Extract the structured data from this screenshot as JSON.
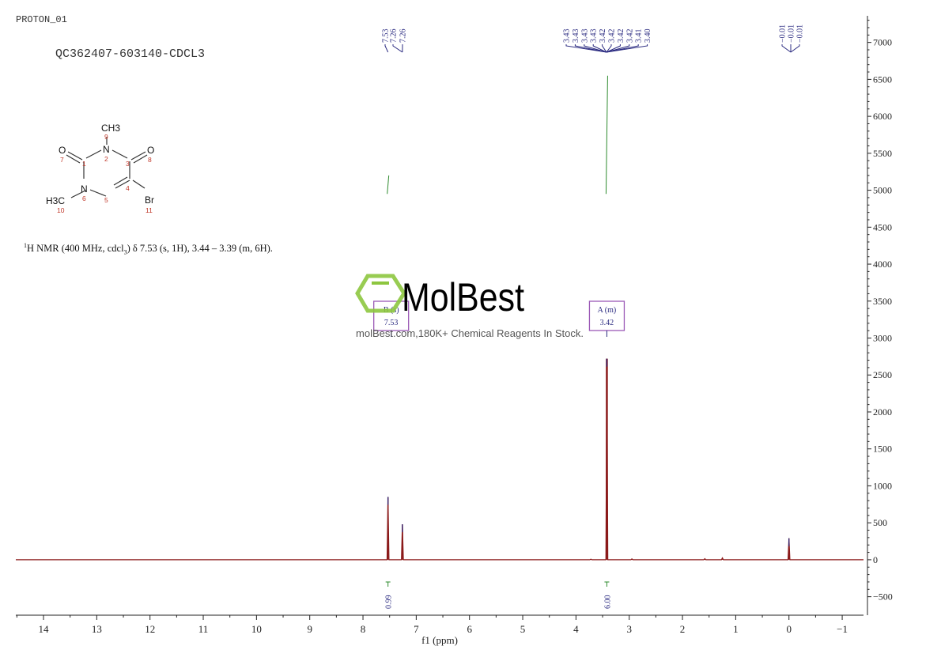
{
  "header": {
    "experiment": "PROTON_01",
    "sample": "QC362407-603140-CDCL3",
    "description": {
      "sup": "1",
      "part1": "H NMR (400 MHz, cdcl",
      "sub": "3",
      "part2": ") δ 7.53 (s, 1H), 3.44 – 3.39 (m, 6H)."
    }
  },
  "molecule": {
    "atoms": {
      "ch3_top": "CH3",
      "n2": "N",
      "n6": "N",
      "o7": "O",
      "o8": "O",
      "br": "Br",
      "h3c": "H3C"
    },
    "numbers": [
      "1",
      "2",
      "3",
      "4",
      "5",
      "6",
      "7",
      "8",
      "9",
      "10",
      "11"
    ],
    "label_color": "#c0392b"
  },
  "watermark": {
    "brand": "MolBest",
    "tagline": "molBest.com,180K+ Chemical Reagents In Stock.",
    "logo_color": "#8dc63f"
  },
  "chart_data": {
    "type": "line",
    "xlabel": "f1 (ppm)",
    "xlim": [
      14.52,
      -1.4
    ],
    "ylim": [
      -750,
      7360
    ],
    "x_ticks": [
      14,
      13,
      12,
      11,
      10,
      9,
      8,
      7,
      6,
      5,
      4,
      3,
      2,
      1,
      0,
      -1
    ],
    "y_ticks": [
      -500,
      0,
      500,
      1000,
      1500,
      2000,
      2500,
      3000,
      3500,
      4000,
      4500,
      5000,
      5500,
      6000,
      6500,
      7000
    ],
    "grid": false,
    "spectrum_color": "#8b1a1a",
    "integral_color": "#2e8b2e",
    "peak_label_color": "#2a2a80",
    "multiplet_box_color": "#9b59b6",
    "peaks": [
      {
        "ppm": 7.53,
        "intensity": 850
      },
      {
        "ppm": 7.26,
        "intensity": 480
      },
      {
        "ppm": 3.42,
        "intensity": 2720
      },
      {
        "ppm": 0.0,
        "intensity": 290
      },
      {
        "ppm": 1.58,
        "intensity": 15
      },
      {
        "ppm": 1.25,
        "intensity": 25
      },
      {
        "ppm": 2.95,
        "intensity": 12
      },
      {
        "ppm": 3.72,
        "intensity": 8
      }
    ],
    "peak_labels": [
      {
        "group": "7.5",
        "values": [
          "7.53",
          "7.26",
          "7.26"
        ]
      },
      {
        "group": "3.4",
        "values": [
          "3.43",
          "3.43",
          "3.43",
          "3.43",
          "3.42",
          "3.42",
          "3.42",
          "3.42",
          "3.41",
          "3.40"
        ]
      },
      {
        "group": "0",
        "values": [
          "-0.01",
          "-0.01",
          "-0.01"
        ]
      }
    ],
    "multiplets": [
      {
        "label": "B (s)",
        "shift": "7.53",
        "ppm": 7.53
      },
      {
        "label": "A (m)",
        "shift": "3.42",
        "ppm": 3.42
      }
    ],
    "integrals": [
      {
        "ppm": 7.53,
        "value": "0.99",
        "curve_from": 4950,
        "curve_to": 5200
      },
      {
        "ppm": 3.42,
        "value": "6.00",
        "curve_from": 4950,
        "curve_to": 6550
      }
    ]
  }
}
